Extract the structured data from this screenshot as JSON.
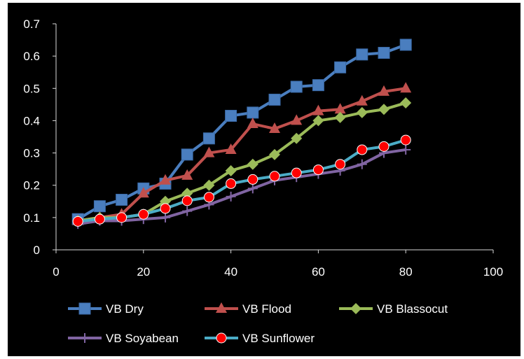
{
  "chart_data": {
    "type": "line",
    "title": "",
    "xlabel": "",
    "ylabel": "",
    "xlim": [
      0,
      100
    ],
    "ylim": [
      0,
      0.7
    ],
    "x_ticks": [
      "0",
      "20",
      "40",
      "60",
      "80",
      "100"
    ],
    "y_ticks": [
      "0",
      "0.1",
      "0.2",
      "0.3",
      "0.4",
      "0.5",
      "0.6",
      "0.7"
    ],
    "grid": false,
    "legend_position": "bottom",
    "x": [
      5,
      10,
      15,
      20,
      25,
      30,
      35,
      40,
      45,
      50,
      55,
      60,
      65,
      70,
      75,
      80
    ],
    "series": [
      {
        "name": "VB  Dry",
        "color": "#4a7ebf",
        "marker": "square",
        "values": [
          0.095,
          0.135,
          0.155,
          0.19,
          0.205,
          0.295,
          0.345,
          0.415,
          0.425,
          0.465,
          0.505,
          0.51,
          0.565,
          0.605,
          0.61,
          0.635
        ]
      },
      {
        "name": "VB  Flood",
        "color": "#c0504d",
        "marker": "triangle",
        "values": [
          0.09,
          0.1,
          0.11,
          0.175,
          0.215,
          0.23,
          0.3,
          0.31,
          0.39,
          0.375,
          0.4,
          0.43,
          0.435,
          0.46,
          0.49,
          0.5
        ]
      },
      {
        "name": "VB Blassocut",
        "color": "#9bbb59",
        "marker": "diamond",
        "values": [
          0.09,
          0.1,
          0.1,
          0.11,
          0.15,
          0.175,
          0.2,
          0.245,
          0.265,
          0.295,
          0.345,
          0.4,
          0.41,
          0.425,
          0.435,
          0.455
        ]
      },
      {
        "name": "VB  Soyabean",
        "color": "#8064a2",
        "marker": "plus",
        "values": [
          0.08,
          0.09,
          0.09,
          0.095,
          0.1,
          0.12,
          0.14,
          0.165,
          0.19,
          0.215,
          0.225,
          0.235,
          0.245,
          0.265,
          0.3,
          0.31
        ]
      },
      {
        "name": "VB  Sunflower",
        "color": "#4bacc6",
        "marker": "circle",
        "values": [
          0.088,
          0.095,
          0.1,
          0.11,
          0.128,
          0.152,
          0.163,
          0.205,
          0.218,
          0.228,
          0.238,
          0.248,
          0.265,
          0.31,
          0.32,
          0.34
        ]
      }
    ]
  }
}
